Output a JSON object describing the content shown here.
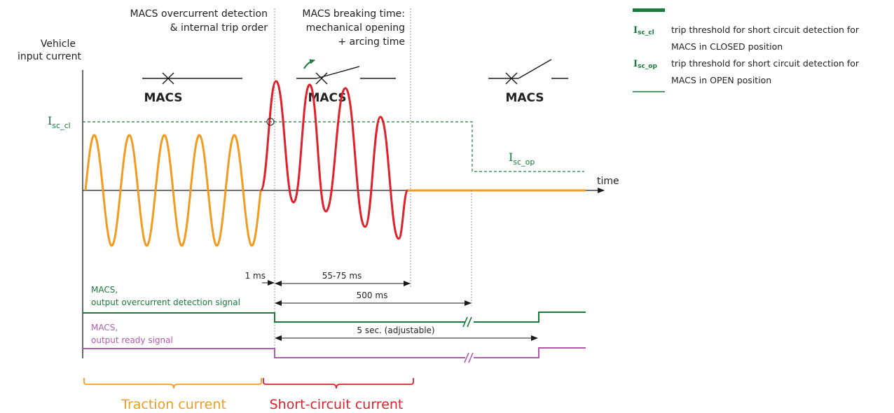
{
  "colors": {
    "green": "#1a7a3a",
    "orange": "#f29b1f",
    "red": "#e0202a",
    "purple": "#b05bb0",
    "black": "#1a1a1a",
    "gray": "#8a8a8a"
  },
  "axis": {
    "y_label_line1": "Vehicle",
    "y_label_line2": "input current",
    "x_label": "time"
  },
  "annotations": {
    "detection_line1": "MACS overcurrent detection",
    "detection_line2": "& internal trip order",
    "breaking_line1": "MACS breaking time:",
    "breaking_line2": "mechanical opening",
    "breaking_line3": "+ arcing time"
  },
  "switches": [
    {
      "label": "MACS",
      "state": "closed"
    },
    {
      "label": "MACS",
      "state": "opening"
    },
    {
      "label": "MACS",
      "state": "open"
    }
  ],
  "thresholds": {
    "isc_cl": {
      "main": "I",
      "sub": "sc_cl"
    },
    "isc_op": {
      "main": "I",
      "sub": "sc_op"
    }
  },
  "durations": {
    "d1": "1 ms",
    "d2": "55-75 ms",
    "d3": "500 ms",
    "d4": "5 sec. (adjustable)"
  },
  "signals": {
    "overcurrent_line1": "MACS,",
    "overcurrent_line2": "output overcurrent detection signal",
    "ready_line1": "MACS,",
    "ready_line2": "output ready signal"
  },
  "brackets": {
    "traction": "Traction current",
    "short_circuit": "Short-circuit current"
  },
  "legend": [
    {
      "symbol": "I",
      "sub": "sc_cl",
      "line1": "trip threshold for short circuit detection for",
      "line2": "MACS in CLOSED position"
    },
    {
      "symbol": "I",
      "sub": "sc_op",
      "line1": "trip threshold for short circuit detection for",
      "line2": "MACS in OPEN position"
    }
  ]
}
